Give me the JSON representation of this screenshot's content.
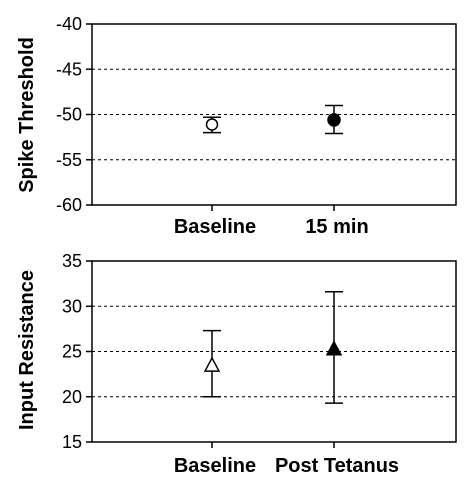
{
  "chart_data": [
    {
      "type": "scatter",
      "title": "",
      "xlabel": "",
      "ylabel": "Spike Threshold",
      "categories": [
        "Baseline",
        "15 min"
      ],
      "ylim": [
        -60,
        -40
      ],
      "yticks": [
        "-40",
        "-45",
        "-50",
        "-55",
        "-60"
      ],
      "grid": "dotted horizontal",
      "series": [
        {
          "values": [
            -51.1,
            -50.6
          ],
          "err_low": [
            -52.0,
            -52.1
          ],
          "err_high": [
            -50.3,
            -49.0
          ],
          "markers": [
            "circle-open",
            "circle-filled"
          ]
        }
      ]
    },
    {
      "type": "scatter",
      "title": "",
      "xlabel": "",
      "ylabel": "Input Resistance",
      "categories": [
        "Baseline",
        "Post Tetanus"
      ],
      "ylim": [
        15,
        35
      ],
      "yticks": [
        "35",
        "30",
        "25",
        "20",
        "15"
      ],
      "grid": "dotted horizontal",
      "series": [
        {
          "values": [
            23.5,
            25.3
          ],
          "err_low": [
            20.0,
            19.3
          ],
          "err_high": [
            27.3,
            31.6
          ],
          "markers": [
            "triangle-open",
            "triangle-filled"
          ]
        }
      ]
    }
  ]
}
